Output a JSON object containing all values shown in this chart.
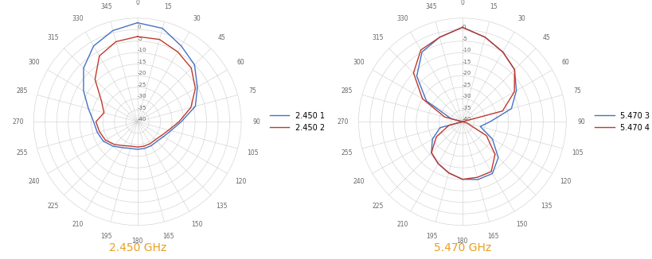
{
  "title1": "2.450 GHz",
  "title2": "5.470 GHz",
  "title_color": "#e8a020",
  "title_fontsize": 10,
  "legend1": [
    "2.450 1",
    "2.450 2"
  ],
  "legend2": [
    "5.470 3",
    "5.470 4"
  ],
  "line_colors": [
    "#4472c4",
    "#c0392b"
  ],
  "rmin": -40,
  "rmax": 5,
  "rtick_dbs": [
    0,
    -5,
    -10,
    -15,
    -20,
    -25,
    -30,
    -35,
    -40
  ],
  "angles_deg": [
    0,
    15,
    30,
    45,
    60,
    75,
    90,
    105,
    120,
    135,
    150,
    165,
    180,
    195,
    210,
    225,
    240,
    255,
    270,
    285,
    300,
    315,
    330,
    345
  ],
  "data2450_1": [
    3,
    2,
    -2,
    -5,
    -10,
    -14,
    -21,
    -25,
    -27,
    -28,
    -28,
    -28,
    -28,
    -28,
    -27,
    -25,
    -23,
    -22,
    -21,
    -18,
    -13,
    -7,
    -2,
    1
  ],
  "data2450_2": [
    -3,
    -3,
    -5,
    -7,
    -11,
    -16,
    -22,
    -26,
    -28,
    -29,
    -29,
    -29,
    -29,
    -29,
    -28,
    -26,
    -24,
    -23,
    -22,
    -25,
    -22,
    -14,
    -7,
    -4
  ],
  "data5470_3": [
    1,
    -2,
    -5,
    -8,
    -13,
    -18,
    -28,
    -32,
    -25,
    -18,
    -14,
    -14,
    -15,
    -17,
    -19,
    -21,
    -25,
    -30,
    -40,
    -35,
    -22,
    -12,
    -5,
    -2
  ],
  "data5470_4": [
    1,
    -2,
    -5,
    -8,
    -14,
    -22,
    -40,
    -38,
    -28,
    -20,
    -15,
    -15,
    -15,
    -17,
    -19,
    -21,
    -27,
    -34,
    -40,
    -32,
    -20,
    -10,
    -4,
    -2
  ]
}
